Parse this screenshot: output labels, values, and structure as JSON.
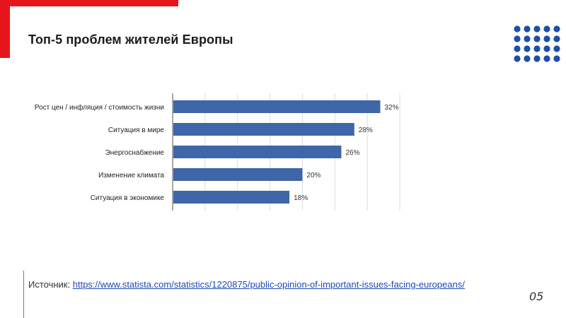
{
  "slide": {
    "title": "Топ-5 проблем жителей Европы",
    "source_label": "Источник:",
    "source_link": "https://www.statista.com/statistics/1220875/public-opinion-of-important-issues-facing-europeans/",
    "page_number": "05"
  },
  "colors": {
    "accent_red": "#e8141b",
    "bar_blue": "#3e66a8",
    "dots_blue": "#1f4fa3",
    "link_blue": "#1f49b5"
  },
  "chart_data": {
    "type": "bar",
    "orientation": "horizontal",
    "categories": [
      "Рост цен / инфляция / стоимость жизни",
      "Ситуация в мире",
      "Энергоснабжение",
      "Изменение климата",
      "Ситуация в экономике"
    ],
    "values": [
      32,
      28,
      26,
      20,
      18
    ],
    "value_labels": [
      "32%",
      "28%",
      "26%",
      "20%",
      "18%"
    ],
    "xlim": [
      0,
      35
    ],
    "grid": true,
    "title": "",
    "xlabel": "",
    "ylabel": ""
  }
}
